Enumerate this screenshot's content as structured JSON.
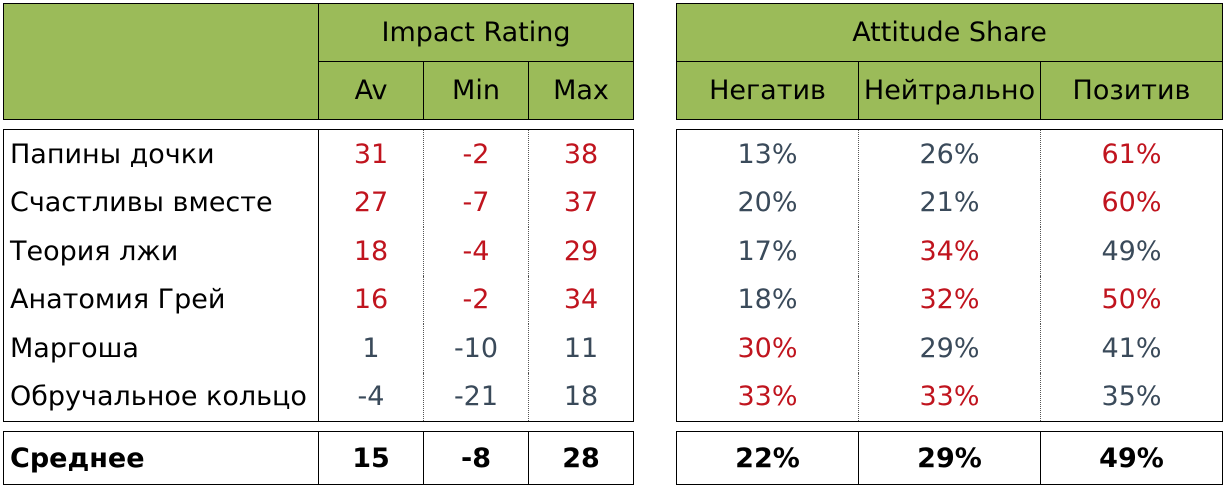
{
  "impact": {
    "title": "Impact Rating",
    "columns": [
      "Av",
      "Min",
      "Max"
    ],
    "rows": [
      {
        "name": "Папины дочки",
        "av": "31",
        "min": "-2",
        "max": "38",
        "colors": [
          "red",
          "red",
          "red"
        ]
      },
      {
        "name": "Счастливы вместе",
        "av": "27",
        "min": "-7",
        "max": "37",
        "colors": [
          "red",
          "red",
          "red"
        ]
      },
      {
        "name": "Теория лжи",
        "av": "18",
        "min": "-4",
        "max": "29",
        "colors": [
          "red",
          "red",
          "red"
        ]
      },
      {
        "name": "Анатомия Грей",
        "av": "16",
        "min": "-2",
        "max": "34",
        "colors": [
          "red",
          "red",
          "red"
        ]
      },
      {
        "name": "Маргоша",
        "av": "1",
        "min": "-10",
        "max": "11",
        "colors": [
          "gray",
          "gray",
          "gray"
        ]
      },
      {
        "name": "Обручальное кольцо",
        "av": "-4",
        "min": "-21",
        "max": "18",
        "colors": [
          "gray",
          "gray",
          "gray"
        ]
      }
    ],
    "total": {
      "name": "Среднее",
      "av": "15",
      "min": "-8",
      "max": "28"
    }
  },
  "attitude": {
    "title": "Attitude Share",
    "columns": [
      "Негатив",
      "Нейтрально",
      "Позитив"
    ],
    "rows": [
      {
        "neg": "13%",
        "neu": "26%",
        "pos": "61%",
        "colors": [
          "gray",
          "gray",
          "red"
        ]
      },
      {
        "neg": "20%",
        "neu": "21%",
        "pos": "60%",
        "colors": [
          "gray",
          "gray",
          "red"
        ]
      },
      {
        "neg": "17%",
        "neu": "34%",
        "pos": "49%",
        "colors": [
          "gray",
          "red",
          "gray"
        ]
      },
      {
        "neg": "18%",
        "neu": "32%",
        "pos": "50%",
        "colors": [
          "gray",
          "red",
          "red"
        ]
      },
      {
        "neg": "30%",
        "neu": "29%",
        "pos": "41%",
        "colors": [
          "red",
          "gray",
          "gray"
        ]
      },
      {
        "neg": "33%",
        "neu": "33%",
        "pos": "35%",
        "colors": [
          "red",
          "red",
          "gray"
        ]
      }
    ],
    "total": {
      "neg": "22%",
      "neu": "29%",
      "pos": "49%"
    }
  },
  "colors": {
    "header_bg": "#9bbb59",
    "red": "#c0141e",
    "gray": "#3a4a5a"
  }
}
